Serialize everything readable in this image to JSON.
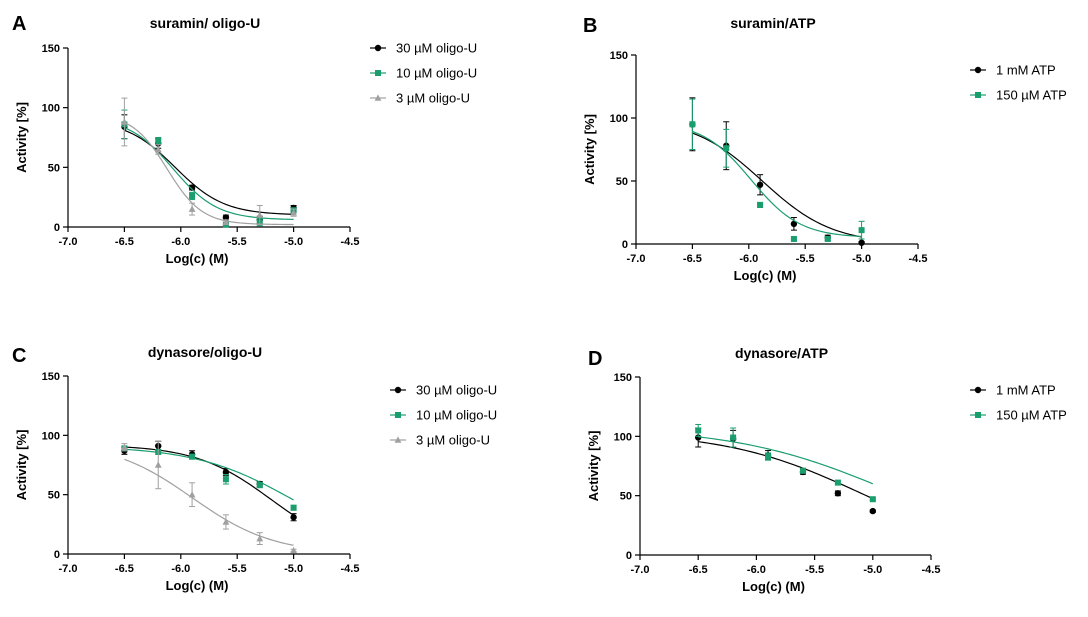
{
  "chart_data": [
    {
      "type": "scatter",
      "panel_letter": "A",
      "title": "suramin/ oligo-U",
      "xlabel": "Log(c) (M)",
      "ylabel": "Activity [%]",
      "xlim": [
        -7.0,
        -4.5
      ],
      "ylim": [
        0,
        150
      ],
      "xticks": [
        -7.0,
        -6.5,
        -6.0,
        -5.5,
        -5.0,
        -4.5
      ],
      "xtick_labels": [
        "-7.0",
        "-6.5",
        "-6.0",
        "-5.5",
        "-5.0",
        "-4.5"
      ],
      "yticks": [
        0,
        50,
        100,
        150
      ],
      "ytick_labels": [
        "0",
        "50",
        "100",
        "150"
      ],
      "legend": "right",
      "series": [
        {
          "name": "30 µM oligo-U",
          "color": "#000000",
          "marker": "circle",
          "x": [
            -6.5,
            -6.2,
            -5.9,
            -5.6,
            -5.3,
            -5.0
          ],
          "y": [
            84,
            70,
            33,
            8,
            6,
            16
          ],
          "err": [
            10,
            4,
            2,
            2,
            3,
            2
          ],
          "fit": {
            "bottom": 10,
            "top": 90,
            "logec50": -6.05,
            "hill": -2.0
          }
        },
        {
          "name": "10 µM oligo-U",
          "color": "#1a9e6e",
          "marker": "square",
          "x": [
            -6.5,
            -6.2,
            -5.9,
            -5.6,
            -5.3,
            -5.0
          ],
          "y": [
            86,
            72,
            26,
            2,
            4,
            14
          ],
          "err": [
            12,
            3,
            3,
            1,
            3,
            2
          ],
          "fit": {
            "bottom": 6,
            "top": 92,
            "logec50": -6.07,
            "hill": -2.2
          }
        },
        {
          "name": "3 µM oligo-U",
          "color": "#a0a0a0",
          "marker": "triangle",
          "x": [
            -6.5,
            -6.2,
            -5.9,
            -5.6,
            -5.3,
            -5.0
          ],
          "y": [
            88,
            65,
            15,
            4,
            10,
            12
          ],
          "err": [
            20,
            4,
            5,
            2,
            8,
            3
          ],
          "fit": {
            "bottom": 2,
            "top": 95,
            "logec50": -6.12,
            "hill": -2.8
          }
        }
      ]
    },
    {
      "type": "scatter",
      "panel_letter": "B",
      "title": "suramin/ATP",
      "xlabel": "Log(c) (M)",
      "ylabel": "Activity [%]",
      "xlim": [
        -7.0,
        -4.5
      ],
      "ylim": [
        0,
        150
      ],
      "xticks": [
        -7.0,
        -6.5,
        -6.0,
        -5.5,
        -5.0,
        -4.5
      ],
      "xtick_labels": [
        "-7.0",
        "-6.5",
        "-6.0",
        "-5.5",
        "-5.0",
        "-4.5"
      ],
      "yticks": [
        0,
        50,
        100,
        150
      ],
      "ytick_labels": [
        "0",
        "50",
        "100",
        "150"
      ],
      "legend": "right",
      "series": [
        {
          "name": "1 mM ATP",
          "color": "#000000",
          "marker": "circle",
          "x": [
            -6.5,
            -6.2,
            -5.9,
            -5.6,
            -5.3,
            -5.0
          ],
          "y": [
            95,
            78,
            47,
            16,
            5,
            1
          ],
          "err": [
            21,
            19,
            8,
            5,
            2,
            1
          ],
          "fit": {
            "bottom": 0,
            "top": 100,
            "logec50": -5.88,
            "hill": -1.4
          }
        },
        {
          "name": "150 µM ATP",
          "color": "#1a9e6e",
          "marker": "square",
          "x": [
            -6.5,
            -6.2,
            -5.9,
            -5.6,
            -5.3,
            -5.0
          ],
          "y": [
            95,
            76,
            31,
            4,
            4,
            11
          ],
          "err": [
            20,
            15,
            2,
            1,
            1,
            7
          ],
          "fit": {
            "bottom": 5,
            "top": 97,
            "logec50": -5.98,
            "hill": -2.0
          }
        }
      ]
    },
    {
      "type": "scatter",
      "panel_letter": "C",
      "title": "dynasore/oligo-U",
      "xlabel": "Log(c) (M)",
      "ylabel": "Activity [%]",
      "xlim": [
        -7.0,
        -4.5
      ],
      "ylim": [
        0,
        150
      ],
      "xticks": [
        -7.0,
        -6.5,
        -6.0,
        -5.5,
        -5.0,
        -4.5
      ],
      "xtick_labels": [
        "-7.0",
        "-6.5",
        "-6.0",
        "-5.5",
        "-5.0",
        "-4.5"
      ],
      "yticks": [
        0,
        50,
        100,
        150
      ],
      "ytick_labels": [
        "0",
        "50",
        "100",
        "150"
      ],
      "legend": "right",
      "series": [
        {
          "name": "30 µM oligo-U",
          "color": "#000000",
          "marker": "circle",
          "x": [
            -6.5,
            -6.2,
            -5.9,
            -5.6,
            -5.3,
            -5.0
          ],
          "y": [
            87,
            91,
            84,
            69,
            59,
            31
          ],
          "err": [
            3,
            4,
            3,
            3,
            2,
            3
          ],
          "fit": {
            "bottom": 0,
            "top": 92,
            "logec50": -5.2,
            "hill": -1.3
          }
        },
        {
          "name": "10 µM oligo-U",
          "color": "#1a9e6e",
          "marker": "square",
          "x": [
            -6.5,
            -6.2,
            -5.9,
            -5.6,
            -5.3,
            -5.0
          ],
          "y": [
            89,
            86,
            82,
            63,
            58,
            39
          ],
          "err": [
            2,
            2,
            2,
            4,
            2,
            2
          ],
          "fit": {
            "bottom": 0,
            "top": 91,
            "logec50": -5.0,
            "hill": -1.0
          }
        },
        {
          "name": "3 µM oligo-U",
          "color": "#a0a0a0",
          "marker": "triangle",
          "x": [
            -6.5,
            -6.2,
            -5.9,
            -5.6,
            -5.3,
            -5.0
          ],
          "y": [
            90,
            75,
            50,
            27,
            13,
            3
          ],
          "err": [
            3,
            20,
            10,
            6,
            5,
            1
          ],
          "fit": {
            "bottom": 0,
            "top": 95,
            "logec50": -5.9,
            "hill": -1.2
          }
        }
      ]
    },
    {
      "type": "scatter",
      "panel_letter": "D",
      "title": "dynasore/ATP",
      "xlabel": "Log(c) (M)",
      "ylabel": "Activity [%]",
      "xlim": [
        -7.0,
        -4.5
      ],
      "ylim": [
        0,
        150
      ],
      "xticks": [
        -7.0,
        -6.5,
        -6.0,
        -5.5,
        -5.0,
        -4.5
      ],
      "xtick_labels": [
        "-7.0",
        "-6.5",
        "-6.0",
        "-5.5",
        "-5.0",
        "-4.5"
      ],
      "yticks": [
        0,
        50,
        100,
        150
      ],
      "ytick_labels": [
        "0",
        "50",
        "100",
        "150"
      ],
      "legend": "right",
      "series": [
        {
          "name": "1 mM ATP",
          "color": "#000000",
          "marker": "circle",
          "x": [
            -6.5,
            -6.2,
            -5.9,
            -5.6,
            -5.3,
            -5.0
          ],
          "y": [
            99,
            98,
            84,
            70,
            52,
            37
          ],
          "err": [
            8,
            7,
            4,
            2,
            2,
            1
          ],
          "fit": {
            "bottom": 0,
            "top": 104,
            "logec50": -5.1,
            "hill": -0.75
          }
        },
        {
          "name": "150 µM ATP",
          "color": "#1a9e6e",
          "marker": "square",
          "x": [
            -6.5,
            -6.2,
            -5.9,
            -5.6,
            -5.3,
            -5.0
          ],
          "y": [
            105,
            99,
            83,
            71,
            61,
            47
          ],
          "err": [
            5,
            8,
            3,
            2,
            1,
            1
          ],
          "fit": {
            "bottom": 0,
            "top": 108,
            "logec50": -4.85,
            "hill": -0.65
          }
        }
      ]
    }
  ]
}
